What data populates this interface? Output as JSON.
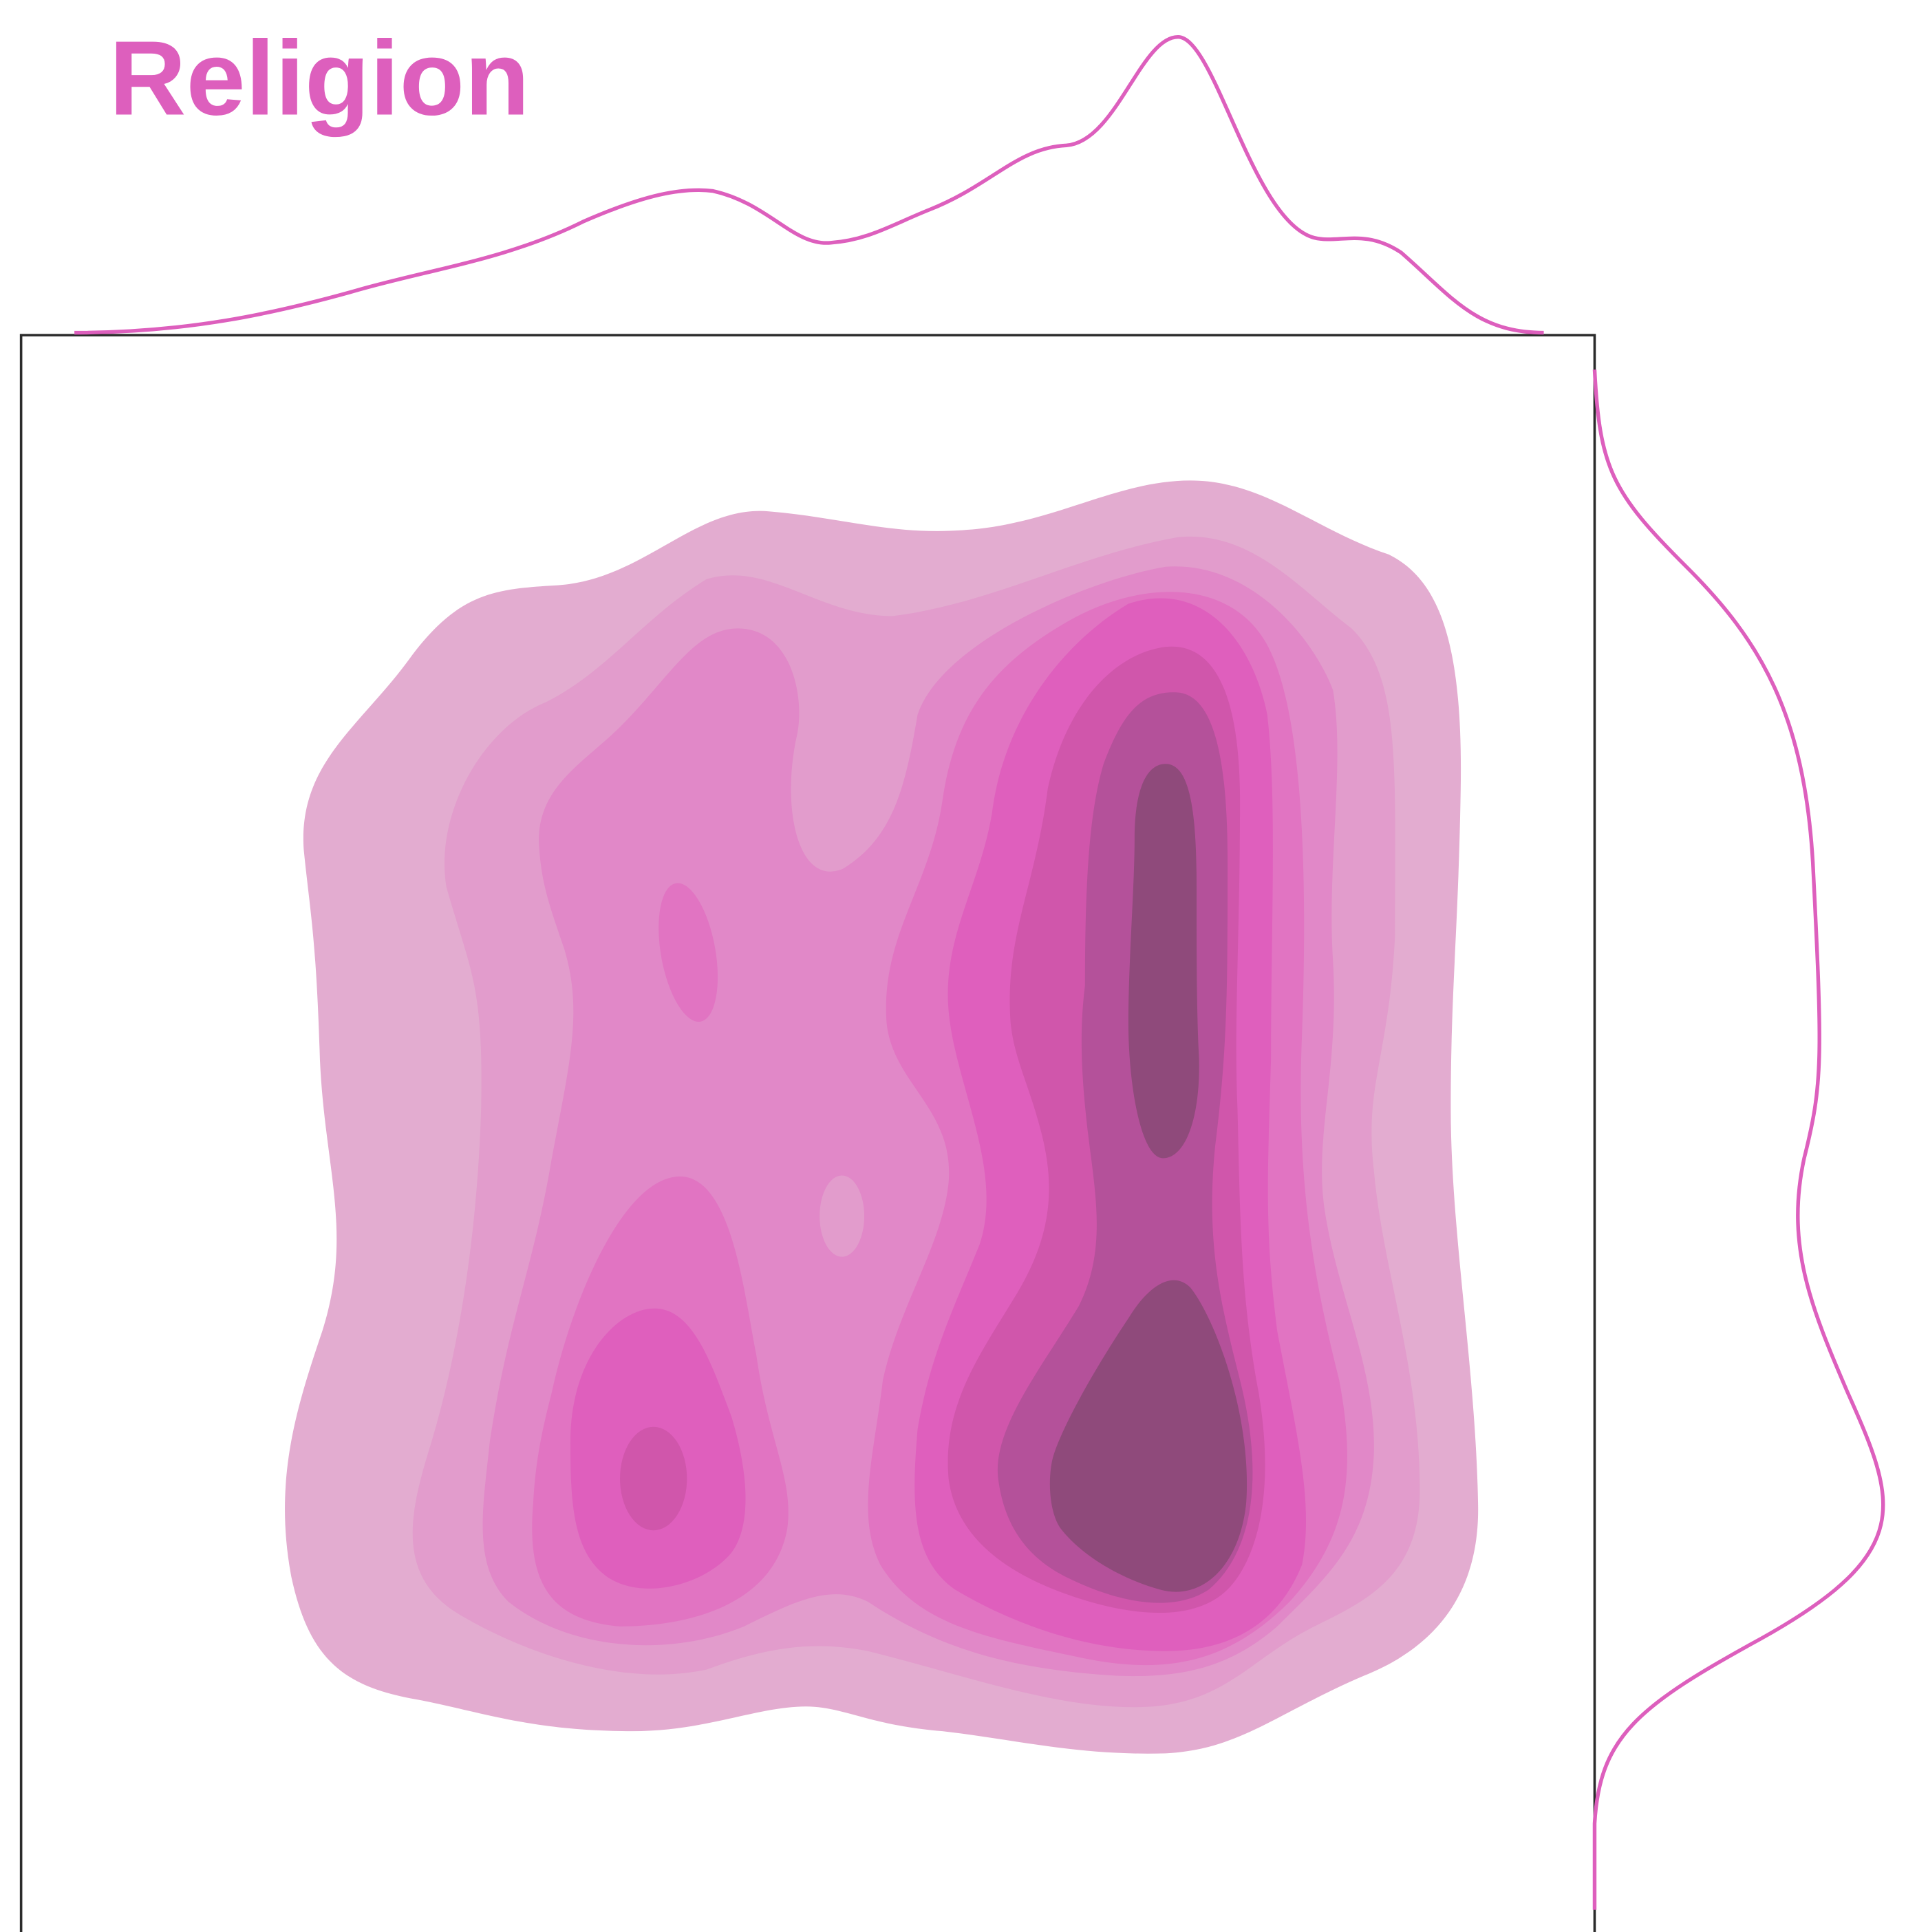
{
  "chart_data": {
    "type": "kde",
    "title": "Religion",
    "color": "#dd5fbd"
  }
}
